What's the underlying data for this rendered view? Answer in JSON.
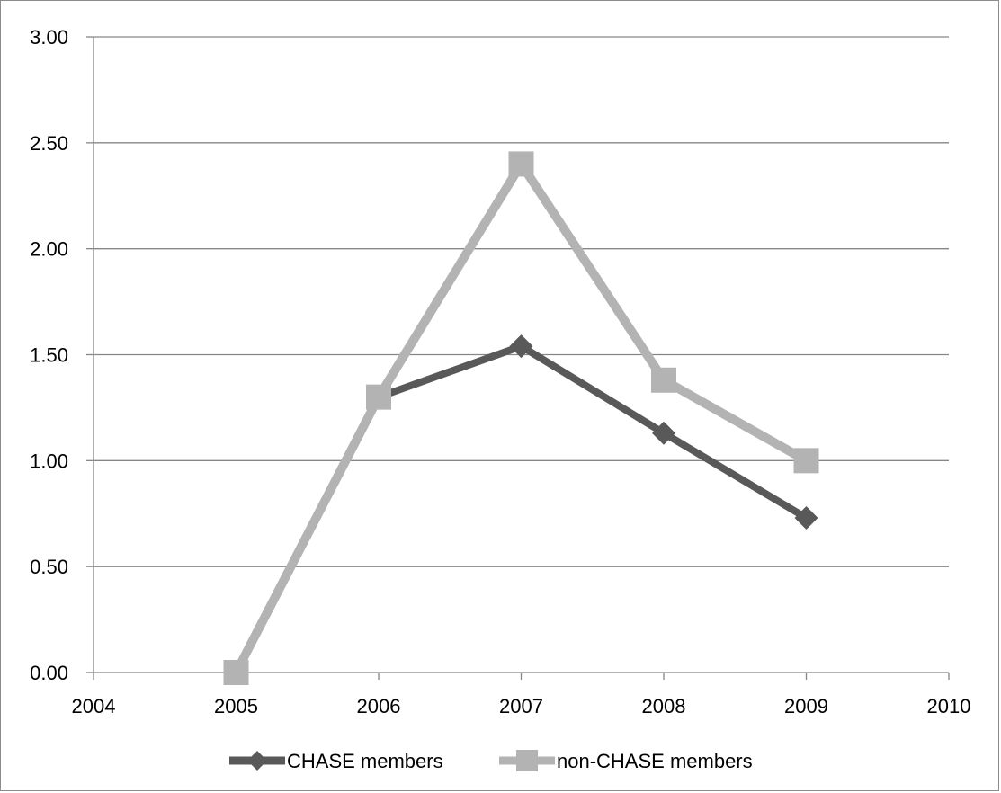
{
  "chart_data": {
    "type": "line",
    "title": "",
    "xlabel": "",
    "ylabel": "",
    "xlim": [
      2004,
      2010
    ],
    "ylim": [
      0,
      3
    ],
    "x_ticks": [
      "2004",
      "2005",
      "2006",
      "2007",
      "2008",
      "2009",
      "2010"
    ],
    "y_ticks": [
      "0.00",
      "0.50",
      "1.00",
      "1.50",
      "2.00",
      "2.50",
      "3.00"
    ],
    "grid": "horizontal",
    "legend_position": "bottom",
    "series": [
      {
        "name": "CHASE members",
        "color": "#595959",
        "marker": "diamond",
        "x": [
          2005,
          2006,
          2007,
          2008,
          2009
        ],
        "y": [
          0.0,
          1.3,
          1.54,
          1.13,
          0.73
        ]
      },
      {
        "name": "non-CHASE members",
        "color": "#b3b3b3",
        "marker": "square",
        "x": [
          2005,
          2006,
          2007,
          2008,
          2009
        ],
        "y": [
          0.0,
          1.3,
          2.4,
          1.38,
          1.0
        ]
      }
    ]
  }
}
